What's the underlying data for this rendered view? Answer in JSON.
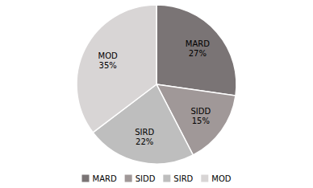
{
  "chart_data": {
    "type": "pie",
    "categories": [
      "MARD",
      "SIDD",
      "SIRD",
      "MOD"
    ],
    "values": [
      27,
      15,
      22,
      35
    ],
    "value_labels": [
      "MARD\n27%",
      "SIDD\n15%",
      "SIRD\n22%",
      "MOD\n35%"
    ],
    "colors": [
      "#7a7475",
      "#a09898",
      "#bebebe",
      "#d8d5d5"
    ],
    "data_labels": true,
    "legend": "bottom"
  }
}
